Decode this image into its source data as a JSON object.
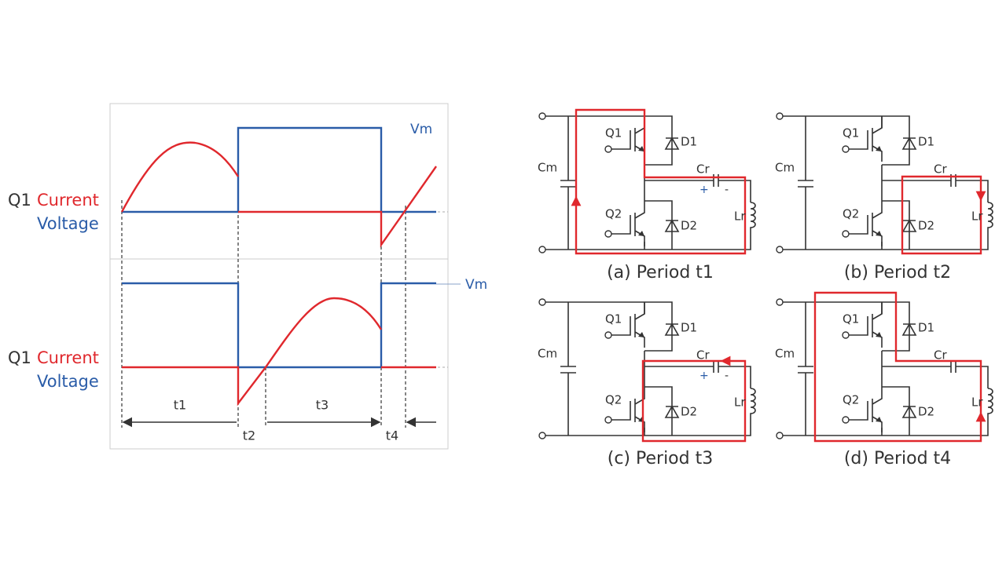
{
  "waveform": {
    "top": {
      "q1": "Q1",
      "current": "Current",
      "voltage": "Voltage",
      "vm": "Vm"
    },
    "bottom": {
      "q1": "Q1",
      "current": "Current",
      "voltage": "Voltage",
      "vm": "Vm"
    },
    "intervals": [
      "t1",
      "t2",
      "t3",
      "t4"
    ]
  },
  "circuits": [
    {
      "caption": "(a) Period t1",
      "labels": {
        "q1": "Q1",
        "q2": "Q2",
        "d1": "D1",
        "d2": "D2",
        "cm": "Cm",
        "cr": "Cr",
        "lr": "Lr"
      },
      "polarity": [
        "+",
        "-"
      ]
    },
    {
      "caption": "(b) Period t2",
      "labels": {
        "q1": "Q1",
        "q2": "Q2",
        "d1": "D1",
        "d2": "D2",
        "cm": "Cm",
        "cr": "Cr",
        "lr": "Lr"
      }
    },
    {
      "caption": "(c) Period t3",
      "labels": {
        "q1": "Q1",
        "q2": "Q2",
        "d1": "D1",
        "d2": "D2",
        "cm": "Cm",
        "cr": "Cr",
        "lr": "Lr"
      },
      "polarity": [
        "+",
        "-"
      ]
    },
    {
      "caption": "(d) Period t4",
      "labels": {
        "q1": "Q1",
        "q2": "Q2",
        "d1": "D1",
        "d2": "D2",
        "cm": "Cm",
        "cr": "Cr",
        "lr": "Lr"
      }
    }
  ]
}
